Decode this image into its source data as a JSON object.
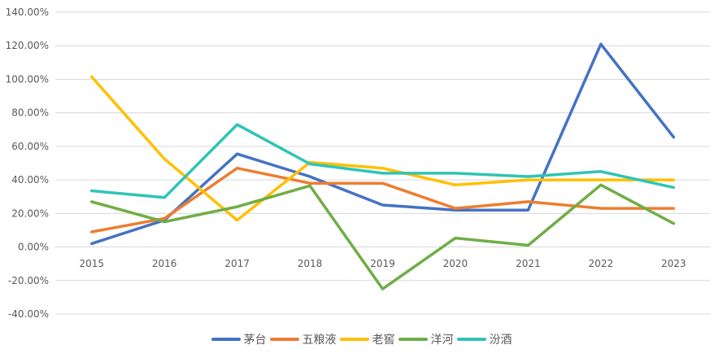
{
  "chart_data": {
    "type": "line",
    "title": "",
    "xlabel": "",
    "ylabel": "",
    "categories": [
      "2015",
      "2016",
      "2017",
      "2018",
      "2019",
      "2020",
      "2021",
      "2022",
      "2023"
    ],
    "ylim": [
      -40,
      140
    ],
    "yticks": [
      -40,
      -20,
      0,
      20,
      40,
      60,
      80,
      100,
      120,
      140
    ],
    "ytick_labels": [
      "-40.00%",
      "-20.00%",
      "0.00%",
      "20.00%",
      "40.00%",
      "60.00%",
      "80.00%",
      "100.00%",
      "120.00%",
      "140.00%"
    ],
    "y_format": "percent",
    "grid": true,
    "legend_position": "bottom",
    "series": [
      {
        "name": "茅台",
        "color": "#4472C4",
        "values": [
          2,
          16,
          55.5,
          42,
          25,
          22,
          22,
          121,
          65.5
        ]
      },
      {
        "name": "五粮液",
        "color": "#ED7D31",
        "values": [
          9,
          17,
          47,
          38,
          38,
          23,
          27,
          23,
          23
        ]
      },
      {
        "name": "老窖",
        "color": "#FFC000",
        "values": [
          101.5,
          52.5,
          16,
          50.5,
          47,
          37,
          40,
          40,
          40
        ]
      },
      {
        "name": "洋河",
        "color": "#70AD47",
        "values": [
          27,
          15,
          24,
          36.5,
          -25,
          5.3,
          1,
          37,
          14
        ]
      },
      {
        "name": "汾酒",
        "color": "#2EC4B6",
        "values": [
          33.5,
          29.5,
          73,
          49.5,
          44,
          44,
          42,
          45,
          35.5
        ]
      }
    ]
  },
  "legend": {
    "items": [
      {
        "label": "茅台",
        "color": "#4472C4"
      },
      {
        "label": "五粮液",
        "color": "#ED7D31"
      },
      {
        "label": "老窖",
        "color": "#FFC000"
      },
      {
        "label": "洋河",
        "color": "#70AD47"
      },
      {
        "label": "汾酒",
        "color": "#2EC4B6"
      }
    ]
  }
}
